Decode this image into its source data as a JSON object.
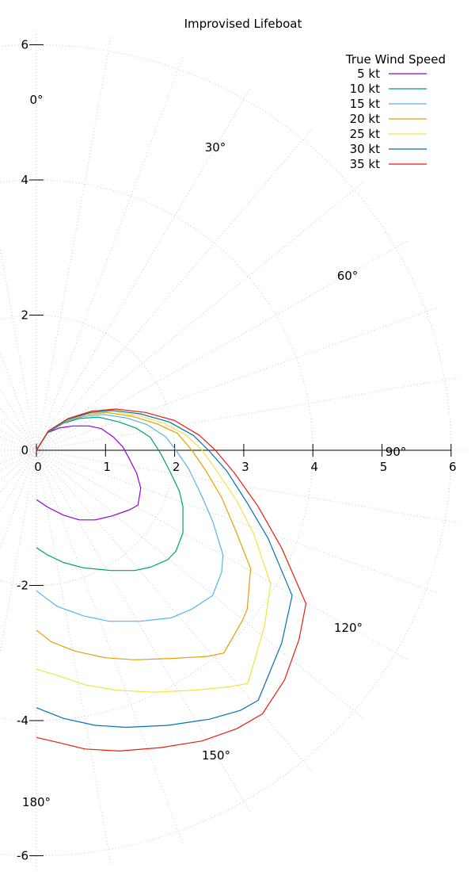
{
  "chart_data": {
    "type": "line",
    "subtype": "polar",
    "title": "Improvised Lifeboat",
    "xlabel": "",
    "ylabel": "",
    "xlim": [
      0,
      6
    ],
    "ylim": [
      -6,
      6
    ],
    "x_ticks": [
      "0",
      "1",
      "2",
      "3",
      "4",
      "5",
      "6"
    ],
    "y_ticks": [
      "6",
      "4",
      "2",
      "0",
      "-2",
      "-4",
      "-6"
    ],
    "grid": true,
    "grid_radii": [
      2,
      4,
      6
    ],
    "grid_angle_step_deg": 10,
    "angle_labels": [
      "0°",
      "30°",
      "60°",
      "90°",
      "120°",
      "150°",
      "180°"
    ],
    "legend": {
      "title": "True Wind Speed",
      "position": "top-right"
    },
    "series": [
      {
        "name": "5 kt",
        "color": "#9400d3",
        "points": [
          [
            0,
            0
          ],
          [
            0.16,
            0.26
          ],
          [
            0.33,
            0.33
          ],
          [
            0.53,
            0.36
          ],
          [
            0.76,
            0.36
          ],
          [
            0.94,
            0.32
          ],
          [
            1.11,
            0.2
          ],
          [
            1.25,
            0.05
          ],
          [
            1.34,
            -0.12
          ],
          [
            1.45,
            -0.34
          ],
          [
            1.51,
            -0.56
          ],
          [
            1.47,
            -0.81
          ],
          [
            1.35,
            -0.88
          ],
          [
            1.1,
            -0.97
          ],
          [
            0.85,
            -1.03
          ],
          [
            0.62,
            -1.03
          ],
          [
            0.39,
            -0.96
          ],
          [
            0.16,
            -0.84
          ],
          [
            0,
            -0.73
          ]
        ]
      },
      {
        "name": "10 kt",
        "color": "#009e73",
        "points": [
          [
            0,
            0
          ],
          [
            0.16,
            0.26
          ],
          [
            0.39,
            0.4
          ],
          [
            0.62,
            0.47
          ],
          [
            0.9,
            0.49
          ],
          [
            1.19,
            0.42
          ],
          [
            1.44,
            0.33
          ],
          [
            1.65,
            0.19
          ],
          [
            1.8,
            -0.05
          ],
          [
            1.94,
            -0.33
          ],
          [
            2.07,
            -0.61
          ],
          [
            2.12,
            -0.84
          ],
          [
            2.12,
            -1.22
          ],
          [
            2.02,
            -1.49
          ],
          [
            1.9,
            -1.62
          ],
          [
            1.65,
            -1.73
          ],
          [
            1.42,
            -1.78
          ],
          [
            1.08,
            -1.78
          ],
          [
            0.68,
            -1.74
          ],
          [
            0.39,
            -1.66
          ],
          [
            0.16,
            -1.55
          ],
          [
            0,
            -1.44
          ]
        ]
      },
      {
        "name": "15 kt",
        "color": "#56b4e9",
        "points": [
          [
            0,
            0
          ],
          [
            0.16,
            0.27
          ],
          [
            0.4,
            0.42
          ],
          [
            0.68,
            0.5
          ],
          [
            0.97,
            0.53
          ],
          [
            1.3,
            0.48
          ],
          [
            1.6,
            0.38
          ],
          [
            1.87,
            0.2
          ],
          [
            2.02,
            0.0
          ],
          [
            2.2,
            -0.27
          ],
          [
            2.38,
            -0.65
          ],
          [
            2.55,
            -1.05
          ],
          [
            2.7,
            -1.55
          ],
          [
            2.68,
            -1.8
          ],
          [
            2.55,
            -2.15
          ],
          [
            2.25,
            -2.35
          ],
          [
            1.95,
            -2.48
          ],
          [
            1.5,
            -2.53
          ],
          [
            1.05,
            -2.53
          ],
          [
            0.68,
            -2.45
          ],
          [
            0.3,
            -2.31
          ],
          [
            0,
            -2.08
          ]
        ]
      },
      {
        "name": "20 kt",
        "color": "#e69f00",
        "points": [
          [
            0,
            0
          ],
          [
            0.17,
            0.28
          ],
          [
            0.42,
            0.44
          ],
          [
            0.72,
            0.53
          ],
          [
            1.02,
            0.56
          ],
          [
            1.4,
            0.5
          ],
          [
            1.75,
            0.39
          ],
          [
            2.04,
            0.25
          ],
          [
            2.25,
            0.0
          ],
          [
            2.45,
            -0.3
          ],
          [
            2.68,
            -0.7
          ],
          [
            2.88,
            -1.18
          ],
          [
            3.1,
            -1.75
          ],
          [
            3.05,
            -2.35
          ],
          [
            2.98,
            -2.52
          ],
          [
            2.71,
            -3.0
          ],
          [
            2.48,
            -3.05
          ],
          [
            1.95,
            -3.08
          ],
          [
            1.42,
            -3.1
          ],
          [
            0.99,
            -3.07
          ],
          [
            0.55,
            -2.97
          ],
          [
            0.21,
            -2.83
          ],
          [
            0,
            -2.66
          ]
        ]
      },
      {
        "name": "25 kt",
        "color": "#f0e442",
        "points": [
          [
            0,
            0
          ],
          [
            0.17,
            0.28
          ],
          [
            0.43,
            0.45
          ],
          [
            0.75,
            0.55
          ],
          [
            1.06,
            0.58
          ],
          [
            1.45,
            0.52
          ],
          [
            1.85,
            0.4
          ],
          [
            2.17,
            0.22
          ],
          [
            2.4,
            0.0
          ],
          [
            2.62,
            -0.32
          ],
          [
            2.9,
            -0.75
          ],
          [
            3.15,
            -1.25
          ],
          [
            3.39,
            -1.98
          ],
          [
            3.3,
            -2.6
          ],
          [
            3.06,
            -3.45
          ],
          [
            2.8,
            -3.5
          ],
          [
            2.3,
            -3.55
          ],
          [
            1.7,
            -3.58
          ],
          [
            1.15,
            -3.55
          ],
          [
            0.7,
            -3.47
          ],
          [
            0.3,
            -3.33
          ],
          [
            0,
            -3.24
          ]
        ]
      },
      {
        "name": "30 kt",
        "color": "#0072b2",
        "points": [
          [
            0,
            0
          ],
          [
            0.17,
            0.28
          ],
          [
            0.45,
            0.46
          ],
          [
            0.78,
            0.56
          ],
          [
            1.1,
            0.59
          ],
          [
            1.5,
            0.54
          ],
          [
            1.92,
            0.42
          ],
          [
            2.27,
            0.22
          ],
          [
            2.49,
            0.0
          ],
          [
            2.75,
            -0.3
          ],
          [
            3.05,
            -0.78
          ],
          [
            3.35,
            -1.3
          ],
          [
            3.7,
            -2.15
          ],
          [
            3.55,
            -2.85
          ],
          [
            3.21,
            -3.7
          ],
          [
            2.95,
            -3.85
          ],
          [
            2.5,
            -3.98
          ],
          [
            1.9,
            -4.07
          ],
          [
            1.3,
            -4.1
          ],
          [
            0.85,
            -4.07
          ],
          [
            0.4,
            -3.97
          ],
          [
            0,
            -3.81
          ]
        ]
      },
      {
        "name": "35 kt",
        "color": "#e51e10",
        "points": [
          [
            0,
            0
          ],
          [
            0.18,
            0.29
          ],
          [
            0.46,
            0.47
          ],
          [
            0.8,
            0.58
          ],
          [
            1.15,
            0.61
          ],
          [
            1.58,
            0.56
          ],
          [
            2.0,
            0.44
          ],
          [
            2.36,
            0.22
          ],
          [
            2.59,
            0.0
          ],
          [
            2.86,
            -0.33
          ],
          [
            3.2,
            -0.82
          ],
          [
            3.55,
            -1.45
          ],
          [
            3.9,
            -2.27
          ],
          [
            3.8,
            -2.8
          ],
          [
            3.59,
            -3.4
          ],
          [
            3.27,
            -3.9
          ],
          [
            2.9,
            -4.12
          ],
          [
            2.4,
            -4.3
          ],
          [
            1.8,
            -4.4
          ],
          [
            1.2,
            -4.45
          ],
          [
            0.7,
            -4.42
          ],
          [
            0.3,
            -4.32
          ],
          [
            0,
            -4.25
          ]
        ]
      }
    ]
  },
  "legend": {
    "title": "True Wind Speed",
    "items": [
      "5 kt",
      "10 kt",
      "15 kt",
      "20 kt",
      "25 kt",
      "30 kt",
      "35 kt"
    ]
  }
}
